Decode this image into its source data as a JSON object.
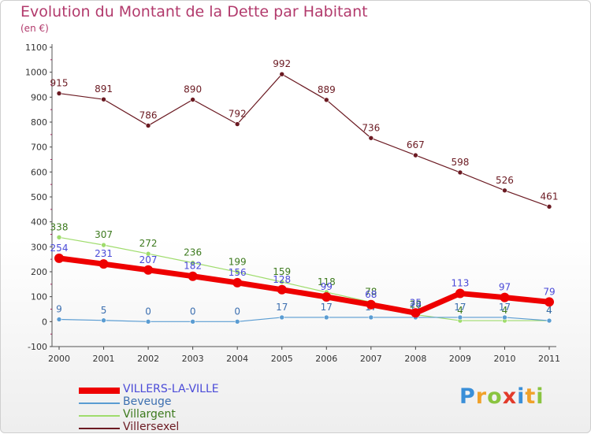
{
  "header": {
    "title": "Evolution du Montant de la Dette par Habitant",
    "unit": "(en €)"
  },
  "logo": {
    "letters": [
      {
        "char": "P",
        "color": "#3a8fd8"
      },
      {
        "char": "r",
        "color": "#f0a12a"
      },
      {
        "char": "o",
        "color": "#8ac440"
      },
      {
        "char": "x",
        "color": "#e23a2a"
      },
      {
        "char": "i",
        "color": "#3a8fd8"
      },
      {
        "char": "t",
        "color": "#f0a12a"
      },
      {
        "char": "i",
        "color": "#8ac440"
      }
    ]
  },
  "chart_data": {
    "type": "line",
    "x": [
      "2000",
      "2001",
      "2002",
      "2003",
      "2004",
      "2005",
      "2006",
      "2007",
      "2008",
      "2009",
      "2010",
      "2011"
    ],
    "ylim": [
      -100,
      1100
    ],
    "yticks": [
      -100,
      0,
      100,
      200,
      300,
      400,
      500,
      600,
      700,
      800,
      900,
      1000,
      1100
    ],
    "grid": false,
    "legend_position": "bottom-left",
    "series": [
      {
        "name": "Villersexel",
        "color": "#6b1a22",
        "text_color": "#6b1a22",
        "width": 1.2,
        "marker": 3,
        "values": [
          915,
          891,
          786,
          890,
          792,
          992,
          889,
          736,
          667,
          598,
          526,
          461
        ]
      },
      {
        "name": "Villargent",
        "color": "#9fdc6c",
        "text_color": "#3d7a1e",
        "width": 1.2,
        "marker": 3,
        "values": [
          338,
          307,
          272,
          236,
          199,
          159,
          118,
          78,
          28,
          4,
          4,
          4
        ]
      },
      {
        "name": "Beveuge",
        "color": "#5a9cd2",
        "text_color": "#3c6fb0",
        "width": 1.2,
        "marker": 3,
        "values": [
          9,
          5,
          0,
          0,
          0,
          17,
          17,
          17,
          17,
          17,
          17,
          4
        ]
      },
      {
        "name": "VILLERS-LA-VILLE",
        "color": "#ee0000",
        "text_color": "#4a4ad8",
        "width": 7,
        "marker": 6,
        "values": [
          254,
          231,
          207,
          182,
          156,
          128,
          99,
          68,
          35,
          113,
          97,
          79
        ]
      }
    ]
  }
}
